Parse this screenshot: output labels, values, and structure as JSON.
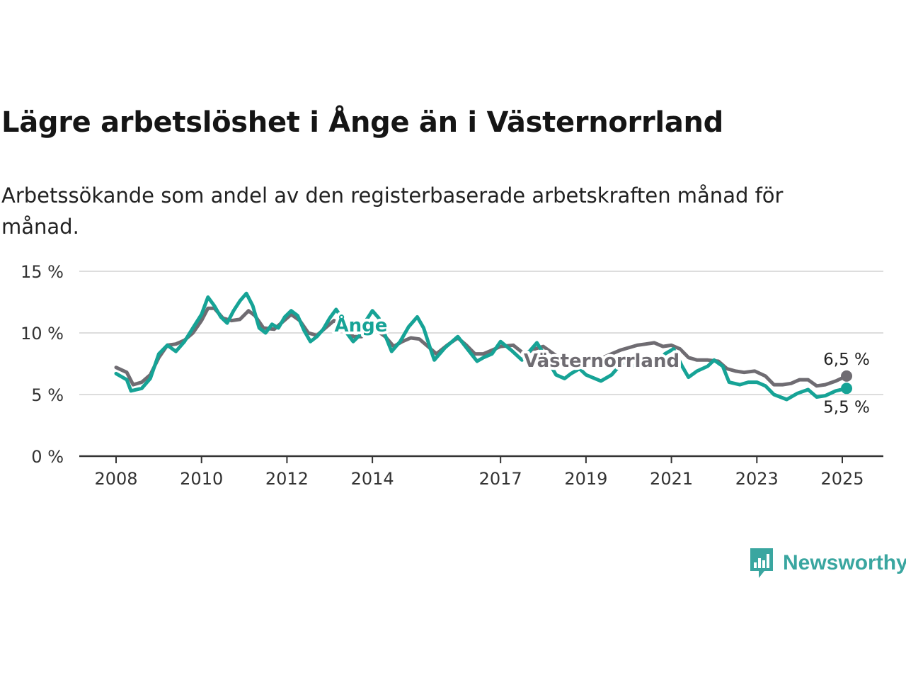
{
  "title": "Lägre arbetslöshet i Ånge än i Västernorrland",
  "subtitle": "Arbetssökande som andel av den registerbaserade arbetskraften månad för månad.",
  "brand": "Newsworthy",
  "chart_data": {
    "type": "line",
    "x_ticks": [
      "2008",
      "2010",
      "2012",
      "2014",
      "2017",
      "2019",
      "2021",
      "2023",
      "2025"
    ],
    "y_ticks": [
      "0 %",
      "5 %",
      "10 %",
      "15 %"
    ],
    "ylim": [
      0,
      15
    ],
    "grid": true,
    "colors": {
      "ange": "#16a396",
      "vasternorrland": "#6f6c72"
    },
    "end_labels": {
      "vasternorrland": "6,5 %",
      "ange": "5,5 %"
    },
    "series": [
      {
        "name": "Ånge",
        "key": "ange",
        "anchors": [
          [
            2008.0,
            6.7
          ],
          [
            2008.25,
            6.2
          ],
          [
            2008.35,
            5.3
          ],
          [
            2008.6,
            5.5
          ],
          [
            2008.8,
            6.3
          ],
          [
            2009.0,
            8.3
          ],
          [
            2009.2,
            9.0
          ],
          [
            2009.4,
            8.5
          ],
          [
            2009.6,
            9.3
          ],
          [
            2009.8,
            10.4
          ],
          [
            2010.0,
            11.5
          ],
          [
            2010.15,
            12.9
          ],
          [
            2010.3,
            12.2
          ],
          [
            2010.45,
            11.3
          ],
          [
            2010.6,
            10.8
          ],
          [
            2010.75,
            11.8
          ],
          [
            2010.9,
            12.6
          ],
          [
            2011.05,
            13.2
          ],
          [
            2011.2,
            12.2
          ],
          [
            2011.35,
            10.4
          ],
          [
            2011.5,
            10.0
          ],
          [
            2011.65,
            10.7
          ],
          [
            2011.8,
            10.4
          ],
          [
            2011.95,
            11.3
          ],
          [
            2012.1,
            11.8
          ],
          [
            2012.25,
            11.4
          ],
          [
            2012.4,
            10.2
          ],
          [
            2012.55,
            9.3
          ],
          [
            2012.7,
            9.7
          ],
          [
            2012.85,
            10.3
          ],
          [
            2013.0,
            11.2
          ],
          [
            2013.15,
            11.9
          ],
          [
            2013.25,
            11.4
          ],
          [
            2013.4,
            10.0
          ],
          [
            2013.55,
            9.3
          ],
          [
            2013.7,
            9.8
          ],
          [
            2013.85,
            11.0
          ],
          [
            2014.0,
            11.8
          ],
          [
            2014.15,
            11.2
          ],
          [
            2014.3,
            9.8
          ],
          [
            2014.45,
            8.5
          ],
          [
            2014.65,
            9.3
          ],
          [
            2014.85,
            10.5
          ],
          [
            2015.05,
            11.3
          ],
          [
            2015.2,
            10.4
          ],
          [
            2015.35,
            8.8
          ],
          [
            2015.45,
            7.8
          ],
          [
            2015.7,
            8.8
          ],
          [
            2016.0,
            9.7
          ],
          [
            2016.2,
            8.8
          ],
          [
            2016.45,
            7.7
          ],
          [
            2016.6,
            8.0
          ],
          [
            2016.8,
            8.3
          ],
          [
            2017.0,
            9.3
          ],
          [
            2017.25,
            8.6
          ],
          [
            2017.5,
            7.8
          ],
          [
            2017.85,
            9.2
          ],
          [
            2018.1,
            7.8
          ],
          [
            2018.3,
            6.6
          ],
          [
            2018.5,
            6.3
          ],
          [
            2018.65,
            6.7
          ],
          [
            2018.85,
            7.1
          ],
          [
            2019.0,
            6.6
          ],
          [
            2019.35,
            6.1
          ],
          [
            2019.6,
            6.6
          ],
          [
            2019.85,
            7.6
          ],
          [
            2020.15,
            7.3
          ],
          [
            2020.4,
            7.6
          ],
          [
            2020.6,
            7.2
          ],
          [
            2020.85,
            8.3
          ],
          [
            2021.05,
            8.7
          ],
          [
            2021.25,
            7.3
          ],
          [
            2021.4,
            6.4
          ],
          [
            2021.6,
            6.9
          ],
          [
            2021.85,
            7.3
          ],
          [
            2022.0,
            7.8
          ],
          [
            2022.2,
            7.3
          ],
          [
            2022.35,
            6.0
          ],
          [
            2022.6,
            5.8
          ],
          [
            2022.8,
            6.0
          ],
          [
            2023.0,
            6.0
          ],
          [
            2023.2,
            5.7
          ],
          [
            2023.4,
            5.0
          ],
          [
            2023.7,
            4.6
          ],
          [
            2023.95,
            5.1
          ],
          [
            2024.2,
            5.4
          ],
          [
            2024.4,
            4.8
          ],
          [
            2024.6,
            4.9
          ],
          [
            2024.85,
            5.3
          ],
          [
            2025.1,
            5.5
          ]
        ]
      },
      {
        "name": "Västernorrland",
        "key": "vasternorrland",
        "anchors": [
          [
            2008.0,
            7.2
          ],
          [
            2008.25,
            6.8
          ],
          [
            2008.4,
            5.8
          ],
          [
            2008.6,
            6.0
          ],
          [
            2008.8,
            6.6
          ],
          [
            2009.0,
            8.0
          ],
          [
            2009.2,
            9.0
          ],
          [
            2009.4,
            9.1
          ],
          [
            2009.6,
            9.4
          ],
          [
            2009.8,
            10.0
          ],
          [
            2010.0,
            11.0
          ],
          [
            2010.15,
            12.0
          ],
          [
            2010.3,
            12.0
          ],
          [
            2010.5,
            11.2
          ],
          [
            2010.7,
            11.0
          ],
          [
            2010.9,
            11.1
          ],
          [
            2011.1,
            11.8
          ],
          [
            2011.25,
            11.4
          ],
          [
            2011.45,
            10.4
          ],
          [
            2011.7,
            10.3
          ],
          [
            2011.9,
            10.9
          ],
          [
            2012.1,
            11.5
          ],
          [
            2012.3,
            11.0
          ],
          [
            2012.5,
            10.0
          ],
          [
            2012.7,
            9.8
          ],
          [
            2012.9,
            10.4
          ],
          [
            2013.1,
            11.0
          ],
          [
            2013.35,
            10.5
          ],
          [
            2013.55,
            9.7
          ],
          [
            2013.75,
            9.7
          ],
          [
            2013.95,
            10.3
          ],
          [
            2014.1,
            10.2
          ],
          [
            2014.3,
            9.7
          ],
          [
            2014.5,
            8.9
          ],
          [
            2014.7,
            9.3
          ],
          [
            2014.9,
            9.6
          ],
          [
            2015.1,
            9.5
          ],
          [
            2015.3,
            8.9
          ],
          [
            2015.5,
            8.3
          ],
          [
            2015.75,
            9.0
          ],
          [
            2016.0,
            9.6
          ],
          [
            2016.2,
            9.0
          ],
          [
            2016.4,
            8.3
          ],
          [
            2016.6,
            8.3
          ],
          [
            2016.8,
            8.6
          ],
          [
            2017.0,
            8.9
          ],
          [
            2017.3,
            9.0
          ],
          [
            2017.55,
            8.3
          ],
          [
            2017.8,
            8.7
          ],
          [
            2018.0,
            8.9
          ],
          [
            2018.2,
            8.4
          ],
          [
            2018.4,
            7.9
          ],
          [
            2018.6,
            7.8
          ],
          [
            2018.8,
            8.0
          ],
          [
            2019.0,
            7.9
          ],
          [
            2019.2,
            7.8
          ],
          [
            2019.4,
            8.0
          ],
          [
            2019.6,
            8.3
          ],
          [
            2019.8,
            8.6
          ],
          [
            2020.0,
            8.8
          ],
          [
            2020.2,
            9.0
          ],
          [
            2020.4,
            9.1
          ],
          [
            2020.6,
            9.2
          ],
          [
            2020.8,
            8.9
          ],
          [
            2021.0,
            9.0
          ],
          [
            2021.2,
            8.7
          ],
          [
            2021.4,
            8.0
          ],
          [
            2021.6,
            7.8
          ],
          [
            2021.85,
            7.8
          ],
          [
            2022.1,
            7.7
          ],
          [
            2022.3,
            7.1
          ],
          [
            2022.5,
            6.9
          ],
          [
            2022.7,
            6.8
          ],
          [
            2022.95,
            6.9
          ],
          [
            2023.2,
            6.5
          ],
          [
            2023.4,
            5.8
          ],
          [
            2023.6,
            5.8
          ],
          [
            2023.8,
            5.9
          ],
          [
            2024.0,
            6.2
          ],
          [
            2024.2,
            6.2
          ],
          [
            2024.4,
            5.7
          ],
          [
            2024.6,
            5.8
          ],
          [
            2024.85,
            6.1
          ],
          [
            2025.1,
            6.5
          ]
        ]
      }
    ],
    "inline_labels": [
      {
        "text": "Ånge",
        "series": "ange"
      },
      {
        "text": "Västernorrland",
        "series": "vasternorrland"
      }
    ]
  }
}
